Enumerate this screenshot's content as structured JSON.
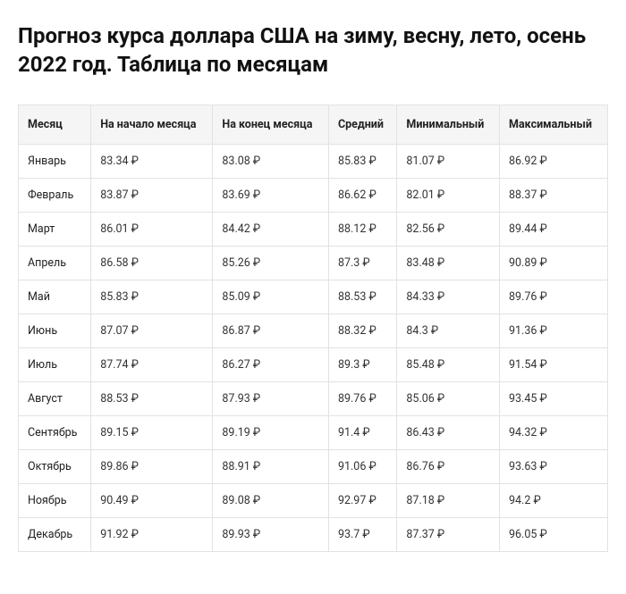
{
  "title": "Прогноз курса доллара США на зиму, весну, лето, осень 2022 год. Таблица по месяцам",
  "colors": {
    "background": "#ffffff",
    "text": "#1a1a1a",
    "header_bg": "#f5f5f5",
    "border": "#e2e2e2"
  },
  "table": {
    "type": "table",
    "columns": [
      "Месяц",
      "На начало месяца",
      "На конец месяца",
      "Средний",
      "Минимальный",
      "Максимальный"
    ],
    "rows": [
      {
        "month": "Январь",
        "start": "83.34 ₽",
        "end": "83.08 ₽",
        "avg": "85.83 ₽",
        "min": "81.07 ₽",
        "max": "86.92 ₽"
      },
      {
        "month": "Февраль",
        "start": "83.87 ₽",
        "end": "83.69 ₽",
        "avg": "86.62 ₽",
        "min": "82.01 ₽",
        "max": "88.37 ₽"
      },
      {
        "month": "Март",
        "start": "86.01 ₽",
        "end": "84.42 ₽",
        "avg": "88.12 ₽",
        "min": "82.56 ₽",
        "max": "89.44 ₽"
      },
      {
        "month": "Апрель",
        "start": "86.58 ₽",
        "end": "85.26 ₽",
        "avg": "87.3 ₽",
        "min": "83.48 ₽",
        "max": "90.89 ₽"
      },
      {
        "month": "Май",
        "start": "85.83 ₽",
        "end": "85.09 ₽",
        "avg": "88.53 ₽",
        "min": "84.33 ₽",
        "max": "89.76 ₽"
      },
      {
        "month": "Июнь",
        "start": "87.07 ₽",
        "end": "86.87 ₽",
        "avg": "88.32 ₽",
        "min": "84.3 ₽",
        "max": "91.36 ₽"
      },
      {
        "month": "Июль",
        "start": "87.74 ₽",
        "end": "86.27 ₽",
        "avg": "89.3 ₽",
        "min": "85.48 ₽",
        "max": "91.54 ₽"
      },
      {
        "month": "Август",
        "start": "88.53 ₽",
        "end": "87.93 ₽",
        "avg": "89.76 ₽",
        "min": "85.06 ₽",
        "max": "93.45 ₽"
      },
      {
        "month": "Сентябрь",
        "start": "89.15 ₽",
        "end": "89.19 ₽",
        "avg": "91.4 ₽",
        "min": "86.43 ₽",
        "max": "94.32 ₽"
      },
      {
        "month": "Октябрь",
        "start": "89.86 ₽",
        "end": "88.91 ₽",
        "avg": "91.06 ₽",
        "min": "86.76 ₽",
        "max": "93.63 ₽"
      },
      {
        "month": "Ноябрь",
        "start": "90.49 ₽",
        "end": "89.08 ₽",
        "avg": "92.97 ₽",
        "min": "87.18 ₽",
        "max": "94.2 ₽"
      },
      {
        "month": "Декабрь",
        "start": "91.92 ₽",
        "end": "89.93 ₽",
        "avg": "93.7 ₽",
        "min": "87.37 ₽",
        "max": "96.05 ₽"
      }
    ]
  }
}
